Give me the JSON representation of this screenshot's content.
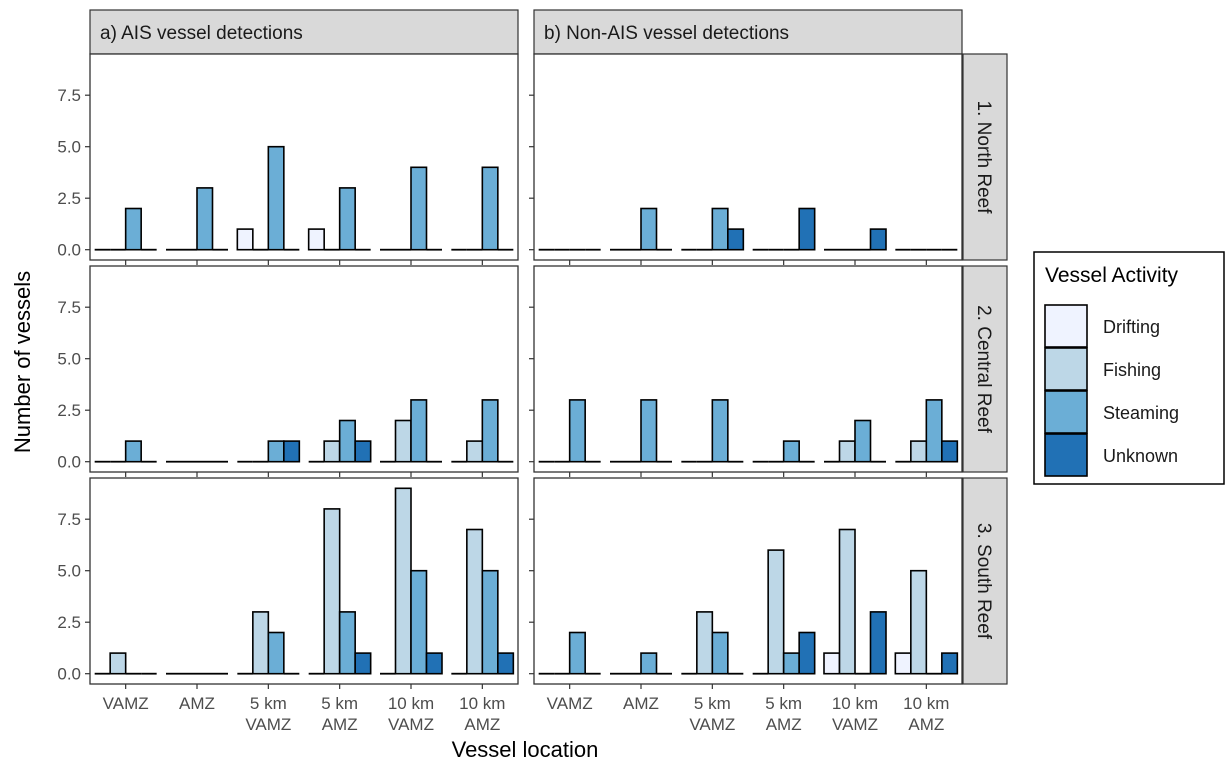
{
  "chart_data": {
    "type": "bar",
    "xlabel": "Vessel location",
    "ylabel": "Number of vessels",
    "ylim": [
      -0.5,
      9.5
    ],
    "yticks": [
      0.0,
      2.5,
      5.0,
      7.5
    ],
    "ytick_labels": [
      "0.0",
      "2.5",
      "5.0",
      "7.5"
    ],
    "categories": [
      [
        "VAMZ"
      ],
      [
        "AMZ"
      ],
      [
        "5 km",
        "VAMZ"
      ],
      [
        "5 km",
        "AMZ"
      ],
      [
        "10 km",
        "VAMZ"
      ],
      [
        "10 km",
        "AMZ"
      ]
    ],
    "columns": [
      "a) AIS vessel detections",
      "b) Non-AIS vessel detections"
    ],
    "rows": [
      "1. North Reef",
      "2. Central Reef",
      "3. South Reef"
    ],
    "legend": {
      "title": "Vessel Activity",
      "position": "right",
      "entries": [
        "Drifting",
        "Fishing",
        "Steaming",
        "Unknown"
      ]
    },
    "colors": {
      "Drifting": "#eff3ff",
      "Fishing": "#bdd7e7",
      "Steaming": "#6baed6",
      "Unknown": "#2171b5",
      "strip": "#d9d9d9",
      "axis": "#4d4d4d"
    },
    "panels": [
      {
        "column": 0,
        "row": 0,
        "series": [
          {
            "name": "Drifting",
            "values": [
              0,
              0,
              1,
              1,
              0,
              0
            ]
          },
          {
            "name": "Fishing",
            "values": [
              0,
              0,
              0,
              0,
              0,
              0
            ]
          },
          {
            "name": "Steaming",
            "values": [
              2,
              3,
              5,
              3,
              4,
              4
            ]
          },
          {
            "name": "Unknown",
            "values": [
              0,
              0,
              0,
              0,
              0,
              0
            ]
          }
        ]
      },
      {
        "column": 1,
        "row": 0,
        "series": [
          {
            "name": "Drifting",
            "values": [
              0,
              0,
              0,
              0,
              0,
              0
            ]
          },
          {
            "name": "Fishing",
            "values": [
              0,
              0,
              0,
              0,
              0,
              0
            ]
          },
          {
            "name": "Steaming",
            "values": [
              0,
              2,
              2,
              0,
              0,
              0
            ]
          },
          {
            "name": "Unknown",
            "values": [
              0,
              0,
              1,
              2,
              1,
              0
            ]
          }
        ]
      },
      {
        "column": 0,
        "row": 1,
        "series": [
          {
            "name": "Drifting",
            "values": [
              0,
              0,
              0,
              0,
              0,
              0
            ]
          },
          {
            "name": "Fishing",
            "values": [
              0,
              0,
              0,
              1,
              2,
              1
            ]
          },
          {
            "name": "Steaming",
            "values": [
              1,
              0,
              1,
              2,
              3,
              3
            ]
          },
          {
            "name": "Unknown",
            "values": [
              0,
              0,
              1,
              1,
              0,
              0
            ]
          }
        ]
      },
      {
        "column": 1,
        "row": 1,
        "series": [
          {
            "name": "Drifting",
            "values": [
              0,
              0,
              0,
              0,
              0,
              0
            ]
          },
          {
            "name": "Fishing",
            "values": [
              0,
              0,
              0,
              0,
              1,
              1
            ]
          },
          {
            "name": "Steaming",
            "values": [
              3,
              3,
              3,
              1,
              2,
              3
            ]
          },
          {
            "name": "Unknown",
            "values": [
              0,
              0,
              0,
              0,
              0,
              1
            ]
          }
        ]
      },
      {
        "column": 0,
        "row": 2,
        "series": [
          {
            "name": "Drifting",
            "values": [
              0,
              0,
              0,
              0,
              0,
              0
            ]
          },
          {
            "name": "Fishing",
            "values": [
              1,
              0,
              3,
              8,
              9,
              7
            ]
          },
          {
            "name": "Steaming",
            "values": [
              0,
              0,
              2,
              3,
              5,
              5
            ]
          },
          {
            "name": "Unknown",
            "values": [
              0,
              0,
              0,
              1,
              1,
              1
            ]
          }
        ]
      },
      {
        "column": 1,
        "row": 2,
        "series": [
          {
            "name": "Drifting",
            "values": [
              0,
              0,
              0,
              0,
              1,
              1
            ]
          },
          {
            "name": "Fishing",
            "values": [
              0,
              0,
              3,
              6,
              7,
              5
            ]
          },
          {
            "name": "Steaming",
            "values": [
              2,
              1,
              2,
              1,
              0,
              0
            ]
          },
          {
            "name": "Unknown",
            "values": [
              0,
              0,
              0,
              2,
              3,
              1
            ]
          }
        ]
      }
    ]
  }
}
